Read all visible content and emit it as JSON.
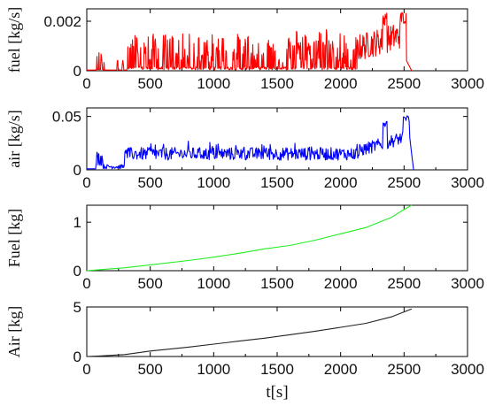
{
  "chart_data": [
    {
      "type": "line",
      "ylabel": "fuel [kg/s]",
      "xlim": [
        0,
        3000
      ],
      "ylim": [
        0,
        0.0025
      ],
      "xticks": [
        "0",
        "500",
        "1000",
        "1500",
        "2000",
        "2500",
        "3000"
      ],
      "yticks": [
        {
          "v": 0,
          "label": "0"
        },
        {
          "v": 0.002,
          "label": "0.002"
        }
      ],
      "series": [
        {
          "color": "#ff0000",
          "values": []
        }
      ]
    },
    {
      "type": "line",
      "ylabel": "air [kg/s]",
      "xlim": [
        0,
        3000
      ],
      "ylim": [
        0,
        0.058
      ],
      "xticks": [
        "0",
        "500",
        "1000",
        "1500",
        "2000",
        "2500",
        "3000"
      ],
      "yticks": [
        {
          "v": 0,
          "label": "0"
        },
        {
          "v": 0.05,
          "label": "0.05"
        }
      ],
      "series": [
        {
          "color": "#0000ff",
          "values": []
        }
      ]
    },
    {
      "type": "line",
      "ylabel": "Fuel [kg]",
      "xlim": [
        0,
        3000
      ],
      "ylim": [
        0,
        1.35
      ],
      "xticks": [
        "0",
        "500",
        "1000",
        "1500",
        "2000",
        "2500",
        "3000"
      ],
      "yticks": [
        {
          "v": 0,
          "label": "0"
        },
        {
          "v": 1,
          "label": "1"
        }
      ],
      "series": [
        {
          "color": "#22ee22",
          "values": [
            [
              0,
              0
            ],
            [
              100,
              0.02
            ],
            [
              300,
              0.06
            ],
            [
              500,
              0.12
            ],
            [
              800,
              0.21
            ],
            [
              1000,
              0.28
            ],
            [
              1200,
              0.36
            ],
            [
              1400,
              0.45
            ],
            [
              1600,
              0.52
            ],
            [
              1800,
              0.63
            ],
            [
              2000,
              0.76
            ],
            [
              2200,
              0.89
            ],
            [
              2400,
              1.1
            ],
            [
              2500,
              1.26
            ],
            [
              2560,
              1.35
            ]
          ]
        }
      ]
    },
    {
      "type": "line",
      "ylabel": "Air [kg]",
      "xlim": [
        0,
        3000
      ],
      "ylim": [
        0,
        5
      ],
      "xlabel": "t[s]",
      "xticks": [
        "0",
        "500",
        "1000",
        "1500",
        "2000",
        "2500",
        "3000"
      ],
      "yticks": [
        {
          "v": 0,
          "label": "0"
        },
        {
          "v": 5,
          "label": "5"
        }
      ],
      "series": [
        {
          "color": "#222222",
          "values": [
            [
              0,
              0
            ],
            [
              100,
              0.05
            ],
            [
              300,
              0.2
            ],
            [
              500,
              0.55
            ],
            [
              800,
              0.95
            ],
            [
              1000,
              1.25
            ],
            [
              1200,
              1.55
            ],
            [
              1400,
              1.85
            ],
            [
              1600,
              2.2
            ],
            [
              1800,
              2.55
            ],
            [
              2000,
              2.95
            ],
            [
              2200,
              3.35
            ],
            [
              2400,
              4.0
            ],
            [
              2500,
              4.5
            ],
            [
              2560,
              4.8
            ]
          ]
        }
      ]
    }
  ]
}
